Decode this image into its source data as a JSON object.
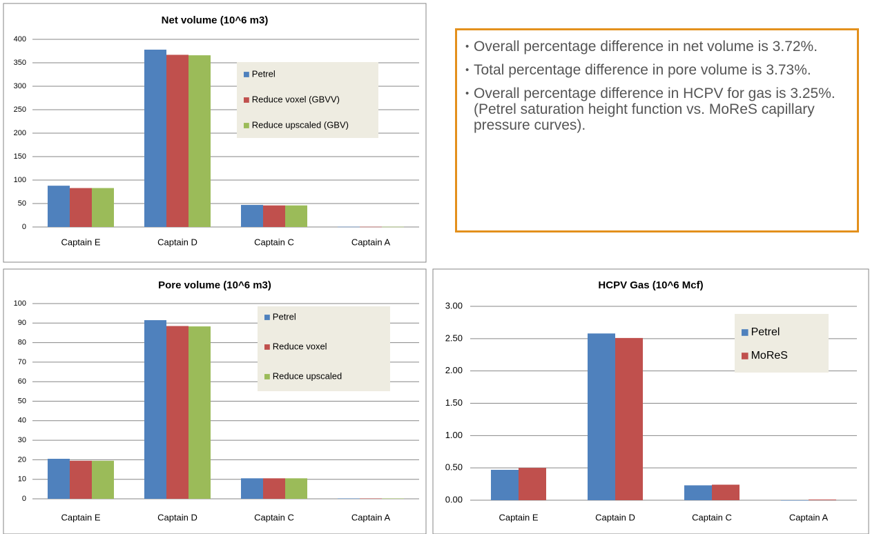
{
  "chart_data": [
    {
      "type": "bar",
      "title": "Net volume (10^6 m3)",
      "categories": [
        "Captain E",
        "Captain D",
        "Captain C",
        "Captain A"
      ],
      "series": [
        {
          "name": "Petrel",
          "color": "#4f81bd",
          "values": [
            88,
            378,
            47,
            0.5
          ]
        },
        {
          "name": "Reduce voxel (GBVV)",
          "color": "#c0504d",
          "values": [
            83,
            367,
            46,
            0.5
          ]
        },
        {
          "name": "Reduce upscaled (GBV)",
          "color": "#9bbb59",
          "values": [
            83,
            366,
            46,
            0.5
          ]
        }
      ],
      "ylim": [
        0,
        400
      ],
      "yticks": [
        0,
        50,
        100,
        150,
        200,
        250,
        300,
        350,
        400
      ],
      "grid": true
    },
    {
      "type": "bar",
      "title": "Pore volume (10^6 m3)",
      "categories": [
        "Captain E",
        "Captain D",
        "Captain C",
        "Captain A"
      ],
      "series": [
        {
          "name": "Petrel",
          "color": "#4f81bd",
          "values": [
            20.5,
            91.5,
            10.5,
            0.2
          ]
        },
        {
          "name": "Reduce voxel",
          "color": "#c0504d",
          "values": [
            19.5,
            88.5,
            10.5,
            0.2
          ]
        },
        {
          "name": "Reduce upscaled",
          "color": "#9bbb59",
          "values": [
            19.5,
            88.3,
            10.5,
            0.2
          ]
        }
      ],
      "ylim": [
        0,
        100
      ],
      "yticks": [
        0,
        10,
        20,
        30,
        40,
        50,
        60,
        70,
        80,
        90,
        100
      ],
      "grid": true
    },
    {
      "type": "bar",
      "title": "HCPV Gas (10^6 Mcf)",
      "categories": [
        "Captain E",
        "Captain D",
        "Captain C",
        "Captain A"
      ],
      "series": [
        {
          "name": "Petrel",
          "color": "#4f81bd",
          "values": [
            0.47,
            2.58,
            0.23,
            0.0
          ]
        },
        {
          "name": "MoReS",
          "color": "#c0504d",
          "values": [
            0.5,
            2.51,
            0.24,
            0.01
          ]
        }
      ],
      "ylim": [
        0,
        3
      ],
      "yticks": [
        {
          "value": 0,
          "label": "0.00"
        },
        {
          "value": 0.5,
          "label": "0.50"
        },
        {
          "value": 1,
          "label": "1.00"
        },
        {
          "value": 1.5,
          "label": "1.50"
        },
        {
          "value": 2,
          "label": "2.00"
        },
        {
          "value": 2.5,
          "label": "2.50"
        },
        {
          "value": 3,
          "label": "3.00"
        }
      ],
      "grid": true
    }
  ],
  "notes": {
    "bullets": [
      "Overall percentage difference in net volume is 3.72%.",
      "Total percentage difference in pore volume is 3.73%.",
      "Overall percentage difference in HCPV for gas is 3.25%.  (Petrel saturation height function vs. MoReS capillary pressure curves)."
    ]
  }
}
